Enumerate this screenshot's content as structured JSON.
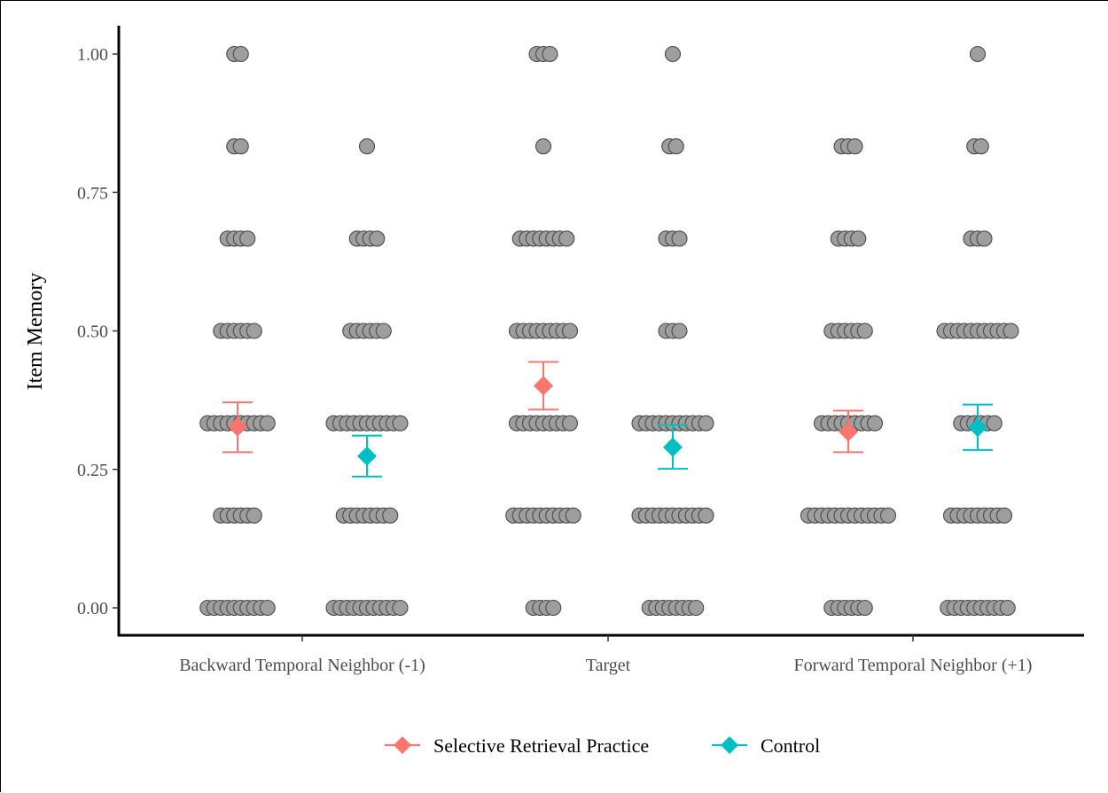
{
  "chart_data": {
    "type": "scatter",
    "title": "",
    "xlabel": "",
    "ylabel": "Item Memory",
    "ylim": [
      0,
      1
    ],
    "yticks": [
      0,
      0.25,
      0.5,
      0.75,
      1
    ],
    "ytick_labels": [
      "0.00",
      "0.25",
      "0.50",
      "0.75",
      "1.00"
    ],
    "categories": [
      "Backward Temporal Neighbor (-1)",
      "Target",
      "Forward Temporal Neighbor (+1)"
    ],
    "legend_position": "bottom",
    "grid": false,
    "series": [
      {
        "name": "Selective Retrieval Practice",
        "color": "#F8766D",
        "means": [
          0.327,
          0.401,
          0.318
        ],
        "lower": [
          0.281,
          0.358,
          0.281
        ],
        "upper": [
          0.371,
          0.444,
          0.356
        ],
        "dots": [
          {
            "0": 10,
            "0.1667": 6,
            "0.3333": 10,
            "0.5": 6,
            "0.6667": 4,
            "0.8333": 2,
            "1": 2
          },
          {
            "0": 4,
            "0.1667": 10,
            "0.3333": 9,
            "0.5": 9,
            "0.6667": 8,
            "0.8333": 1,
            "1": 3
          },
          {
            "0": 6,
            "0.1667": 13,
            "0.3333": 9,
            "0.5": 6,
            "0.6667": 4,
            "0.8333": 3,
            "1": 0
          }
        ]
      },
      {
        "name": "Control",
        "color": "#00BFC4",
        "means": [
          0.274,
          0.29,
          0.326
        ],
        "lower": [
          0.237,
          0.251,
          0.285
        ],
        "upper": [
          0.311,
          0.33,
          0.367
        ],
        "dots": [
          {
            "0": 11,
            "0.1667": 8,
            "0.3333": 11,
            "0.5": 6,
            "0.6667": 4,
            "0.8333": 1,
            "1": 0
          },
          {
            "0": 8,
            "0.1667": 11,
            "0.3333": 11,
            "0.5": 3,
            "0.6667": 3,
            "0.8333": 2,
            "1": 1
          },
          {
            "0": 10,
            "0.1667": 9,
            "0.3333": 6,
            "0.5": 11,
            "0.6667": 3,
            "0.8333": 2,
            "1": 1
          }
        ]
      }
    ]
  }
}
